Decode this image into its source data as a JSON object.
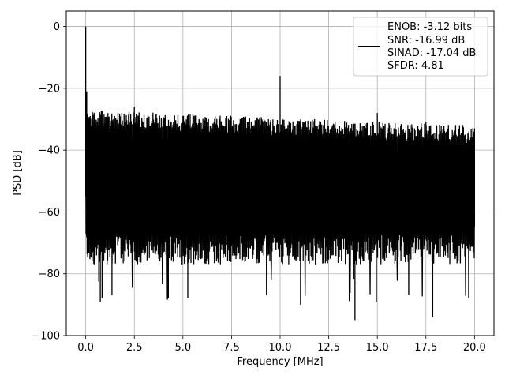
{
  "chart_data": {
    "type": "line",
    "xlabel": "Frequency [MHz]",
    "ylabel": "PSD [dB]",
    "xlim": [
      -1.0,
      21.0
    ],
    "ylim": [
      -100,
      5
    ],
    "xticks": [
      0.0,
      2.5,
      5.0,
      7.5,
      10.0,
      12.5,
      15.0,
      17.5,
      20.0
    ],
    "xtick_labels": [
      "0.0",
      "2.5",
      "5.0",
      "7.5",
      "10.0",
      "12.5",
      "15.0",
      "17.5",
      "20.0"
    ],
    "yticks": [
      0,
      -20,
      -40,
      -60,
      -80,
      -100
    ],
    "ytick_labels": [
      "0",
      "−20",
      "−40",
      "−60",
      "−80",
      "−100"
    ],
    "grid": true,
    "line_color": "#000000",
    "legend": {
      "placement": "upper right",
      "entries": [
        "ENOB: -3.12 bits",
        "SNR: -16.99 dB",
        "SINAD: -17.04 dB",
        "SFDR: 4.81"
      ]
    },
    "series": [
      {
        "description_points": {
          "x_range": [
            0.0,
            20.0
          ],
          "dc_peak": [
            0.0,
            0.0
          ],
          "spurs": [
            [
              0.05,
              -21
            ],
            [
              2.5,
              -26
            ],
            [
              10.0,
              -16
            ],
            [
              15.0,
              -28
            ],
            [
              17.5,
              -31
            ]
          ],
          "upper_envelope_start": -27,
          "upper_envelope_end": -32,
          "lower_envelope_typical": -75,
          "deep_dips": [
            [
              0.75,
              -89
            ],
            [
              1.35,
              -87
            ],
            [
              4.25,
              -88
            ],
            [
              5.25,
              -88
            ],
            [
              11.05,
              -90
            ],
            [
              13.85,
              -95
            ],
            [
              14.95,
              -89
            ],
            [
              17.85,
              -94
            ]
          ]
        }
      }
    ]
  }
}
